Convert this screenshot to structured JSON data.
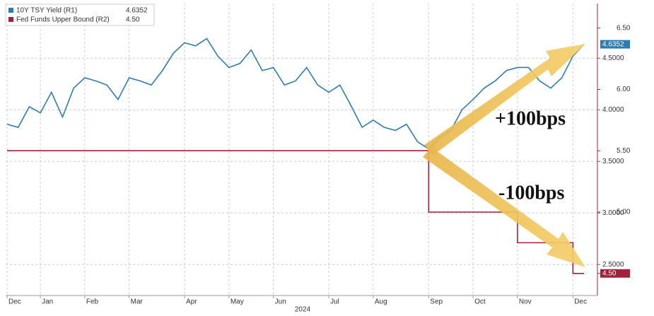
{
  "chart_data": {
    "type": "line",
    "xlabel": "2024",
    "x": [
      "Dec",
      null,
      null,
      "Jan",
      null,
      null,
      null,
      "Feb",
      null,
      null,
      null,
      "Mar",
      null,
      null,
      null,
      null,
      "Apr",
      null,
      null,
      null,
      "May",
      null,
      null,
      null,
      "Jun",
      null,
      null,
      null,
      null,
      "Jul",
      null,
      null,
      null,
      "Aug",
      null,
      null,
      null,
      null,
      "Sep",
      null,
      null,
      null,
      "Oct",
      null,
      null,
      null,
      "Nov",
      null,
      null,
      null,
      null,
      "Dec",
      null
    ],
    "series": [
      {
        "name": "10Y TSY Yield (R1)",
        "color": "#2e7bb0",
        "axis": "y",
        "values": [
          3.86,
          3.83,
          4.03,
          3.97,
          4.17,
          3.93,
          4.21,
          4.31,
          4.28,
          4.24,
          4.1,
          4.31,
          4.28,
          4.24,
          4.38,
          4.55,
          4.65,
          4.62,
          4.69,
          4.52,
          4.41,
          4.45,
          4.58,
          4.38,
          4.41,
          4.24,
          4.28,
          4.41,
          4.24,
          4.17,
          4.24,
          4.04,
          3.83,
          3.9,
          3.83,
          3.8,
          3.86,
          3.69,
          3.62,
          3.73,
          3.8,
          4.0,
          4.1,
          4.21,
          4.28,
          4.38,
          4.41,
          4.41,
          4.28,
          4.21,
          4.31,
          4.52,
          4.6352
        ]
      },
      {
        "name": "Fed Funds Upper Bound (R2)",
        "color": "#a3203a",
        "axis": "y2",
        "step": true,
        "values": [
          5.5,
          5.5,
          5.5,
          5.5,
          5.5,
          5.5,
          5.5,
          5.5,
          5.5,
          5.5,
          5.5,
          5.5,
          5.5,
          5.5,
          5.5,
          5.5,
          5.5,
          5.5,
          5.5,
          5.5,
          5.5,
          5.5,
          5.5,
          5.5,
          5.5,
          5.5,
          5.5,
          5.5,
          5.5,
          5.5,
          5.5,
          5.5,
          5.5,
          5.5,
          5.5,
          5.5,
          5.5,
          5.5,
          5.0,
          5.0,
          5.0,
          5.0,
          5.0,
          5.0,
          5.0,
          5.0,
          4.75,
          4.75,
          4.75,
          4.75,
          4.75,
          4.5,
          4.5
        ],
        "value_labels": [
          null,
          null,
          null,
          null,
          null,
          null,
          null,
          null,
          null,
          null,
          null,
          null,
          null,
          null,
          null,
          null,
          null,
          null,
          null,
          null,
          null,
          null,
          null,
          null,
          null,
          null,
          null,
          null,
          null,
          null,
          null,
          null,
          null,
          null,
          null,
          null,
          null,
          null,
          null,
          null,
          null,
          null,
          null,
          null,
          null,
          null,
          null,
          null,
          null,
          null,
          null,
          null,
          "4.50"
        ]
      }
    ],
    "ylim": [
      2.2,
      5.03
    ],
    "yticks": [
      {
        "value": 2.5,
        "label": "2.5000"
      },
      {
        "value": 3,
        "label": "3.0000"
      },
      {
        "value": 3.5,
        "label": "3.5000"
      },
      {
        "value": 4,
        "label": "4.0000"
      },
      {
        "value": 4.5,
        "label": "4.5000"
      }
    ],
    "y2lim": [
      4.32,
      6.7
    ],
    "y2ticks": [
      {
        "value": 4.5,
        "label": "4.50"
      },
      {
        "value": 5,
        "label": "5.00"
      },
      {
        "value": 5.5,
        "label": "5.50"
      },
      {
        "value": 6,
        "label": "6.00"
      },
      {
        "value": 6.5,
        "label": "6.50"
      }
    ],
    "grid": true,
    "annotations": [
      "+100bps",
      "-100bps"
    ]
  }
}
